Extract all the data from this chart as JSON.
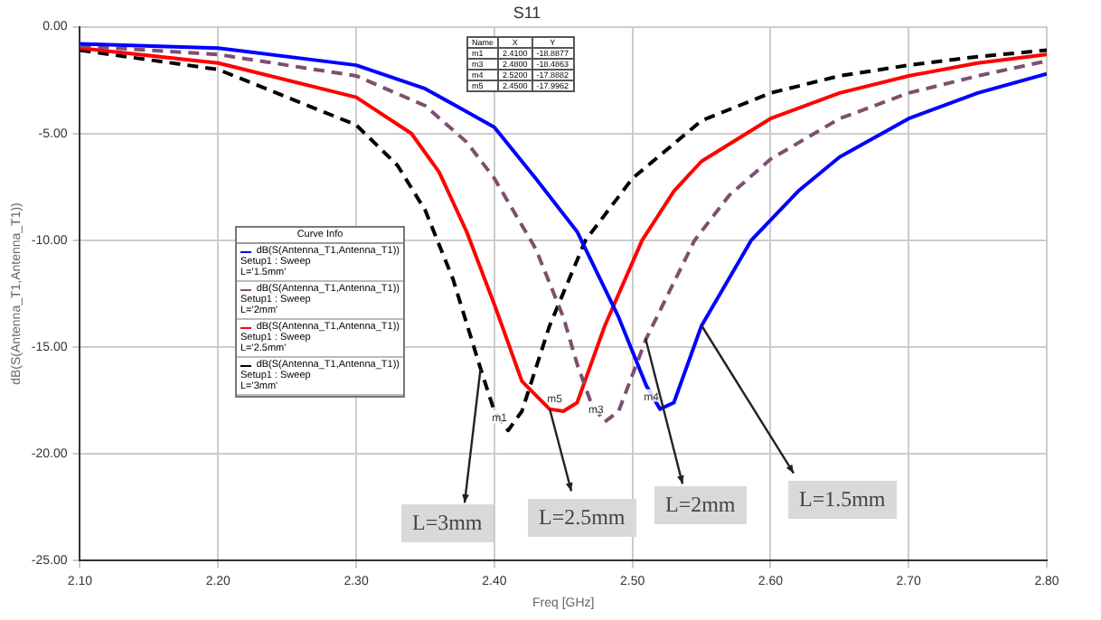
{
  "chart_data": {
    "type": "line",
    "title": "S11",
    "xlabel": "Freq [GHz]",
    "ylabel": "dB(S(Antenna_T1,Antenna_T1))",
    "legend_title": "Curve Info",
    "legend": "left",
    "grid": true,
    "marker": "none",
    "xlim": [
      2.1,
      2.8
    ],
    "xticks": [
      {
        "value": 2.1,
        "label": "2.10"
      },
      {
        "value": 2.2,
        "label": "2.20"
      },
      {
        "value": 2.3,
        "label": "2.30"
      },
      {
        "value": 2.4,
        "label": "2.40"
      },
      {
        "value": 2.5,
        "label": "2.50"
      },
      {
        "value": 2.6,
        "label": "2.60"
      },
      {
        "value": 2.7,
        "label": "2.70"
      },
      {
        "value": 2.8,
        "label": "2.80"
      }
    ],
    "ylim": [
      -25,
      0
    ],
    "yticks": [
      {
        "value": -25,
        "label": "-25.00"
      },
      {
        "value": -20,
        "label": "-20.00"
      },
      {
        "value": -15,
        "label": "-15.00"
      },
      {
        "value": -10,
        "label": "-10.00"
      },
      {
        "value": -5,
        "label": "-5.00"
      },
      {
        "value": 0,
        "label": "0.00"
      }
    ],
    "series": [
      {
        "name": "dB(S(Antenna_T1,Antenna_T1))\nSetup1 : Sweep\nL='1.5mm'",
        "color": "#0000ff",
        "line_style": "solid",
        "x": [
          2.1,
          2.2,
          2.3,
          2.35,
          2.4,
          2.43,
          2.46,
          2.49,
          2.51,
          2.52,
          2.53,
          2.55,
          2.586,
          2.62,
          2.65,
          2.7,
          2.75,
          2.8
        ],
        "values": [
          -0.8,
          -1.0,
          -1.8,
          -2.9,
          -4.7,
          -7.1,
          -9.6,
          -13.6,
          -16.8,
          -17.9,
          -17.6,
          -14.0,
          -10.0,
          -7.7,
          -6.1,
          -4.3,
          -3.1,
          -2.2
        ]
      },
      {
        "name": "dB(S(Antenna_T1,Antenna_T1))\nSetup1 : Sweep\nL='2mm'",
        "color": "#7f4f6f",
        "line_style": "dashed",
        "x": [
          2.1,
          2.2,
          2.3,
          2.35,
          2.38,
          2.4,
          2.43,
          2.45,
          2.46,
          2.47,
          2.48,
          2.49,
          2.51,
          2.545,
          2.57,
          2.6,
          2.65,
          2.7,
          2.75,
          2.8
        ],
        "values": [
          -0.9,
          -1.3,
          -2.3,
          -3.7,
          -5.4,
          -7.1,
          -10.4,
          -13.6,
          -15.8,
          -17.6,
          -18.5,
          -18.0,
          -14.6,
          -10.0,
          -7.9,
          -6.2,
          -4.3,
          -3.1,
          -2.3,
          -1.6
        ]
      },
      {
        "name": "dB(S(Antenna_T1,Antenna_T1))\nSetup1 : Sweep\nL='2.5mm'",
        "color": "#ff0000",
        "line_style": "solid",
        "x": [
          2.1,
          2.2,
          2.3,
          2.34,
          2.36,
          2.38,
          2.4,
          2.42,
          2.44,
          2.45,
          2.46,
          2.48,
          2.507,
          2.53,
          2.55,
          2.6,
          2.65,
          2.7,
          2.75,
          2.8
        ],
        "values": [
          -1.0,
          -1.7,
          -3.3,
          -5.0,
          -6.8,
          -9.6,
          -13.0,
          -16.6,
          -17.9,
          -18.0,
          -17.6,
          -14.0,
          -10.0,
          -7.7,
          -6.3,
          -4.3,
          -3.1,
          -2.3,
          -1.7,
          -1.3
        ]
      },
      {
        "name": "dB(S(Antenna_T1,Antenna_T1))\nSetup1 : Sweep\nL='3mm'",
        "color": "#000000",
        "line_style": "dashed",
        "x": [
          2.1,
          2.2,
          2.3,
          2.33,
          2.35,
          2.37,
          2.39,
          2.4,
          2.41,
          2.42,
          2.44,
          2.466,
          2.5,
          2.55,
          2.6,
          2.65,
          2.7,
          2.75,
          2.8
        ],
        "values": [
          -1.1,
          -2.0,
          -4.6,
          -6.5,
          -8.6,
          -11.8,
          -16.0,
          -18.0,
          -18.9,
          -18.0,
          -14.0,
          -10.0,
          -7.1,
          -4.4,
          -3.1,
          -2.3,
          -1.8,
          -1.4,
          -1.1
        ]
      }
    ],
    "annotations": [
      {
        "text": "m1",
        "x": 2.41,
        "y": -18.9
      },
      {
        "text": "m3",
        "x": 2.48,
        "y": -18.5
      },
      {
        "text": "m4",
        "x": 2.52,
        "y": -17.9
      },
      {
        "text": "m5",
        "x": 2.45,
        "y": -18.0
      },
      "Name",
      "X",
      "Y",
      "m1",
      "2.4100",
      "-18.8877",
      "m3",
      "2.4800",
      "-18.4863",
      "m4",
      "2.5200",
      "-17.8882",
      "m5",
      "2.4500",
      "-17.9962",
      {
        "text": "L=3mm",
        "x": 2.39,
        "y": -16.0
      },
      {
        "text": "L=2.5mm",
        "x": 2.44,
        "y": -17.9
      },
      {
        "text": "L=2mm",
        "x": 2.51,
        "y": -14.6
      },
      {
        "text": "L=1.5mm",
        "x": 2.55,
        "y": -14.0
      }
    ]
  }
}
